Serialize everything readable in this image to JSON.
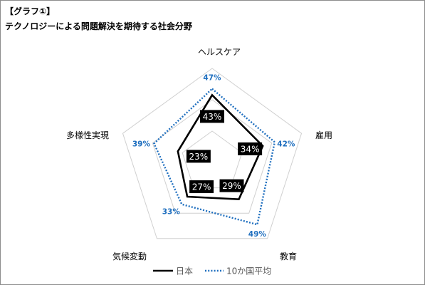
{
  "header": {
    "label": "【グラフ①】",
    "title": "テクノロジーによる問題解決を期待する社会分野"
  },
  "colors": {
    "japan": "#000000",
    "average": "#1f6fbf",
    "grid": "#d0d0d0",
    "label_box": "#000000",
    "label_text": "#ffffff"
  },
  "chart_data": {
    "type": "radar",
    "title": "テクノロジーによる問題解決を期待する社会分野",
    "categories": [
      "ヘルスケア",
      "雇用",
      "教育",
      "気候変動",
      "多様性実現"
    ],
    "rlim": [
      0,
      60
    ],
    "grid_levels": [
      20,
      40,
      60
    ],
    "legend_position": "bottom-center",
    "series": [
      {
        "name": "日本",
        "values": [
          43,
          34,
          29,
          27,
          23
        ],
        "labels": [
          "43%",
          "34%",
          "29%",
          "27%",
          "23%"
        ],
        "line_style": "solid",
        "color": "#000000"
      },
      {
        "name": "10か国平均",
        "values": [
          47,
          42,
          49,
          33,
          39
        ],
        "labels": [
          "47%",
          "42%",
          "49%",
          "33%",
          "39%"
        ],
        "line_style": "dotted",
        "color": "#1f6fbf"
      }
    ]
  }
}
